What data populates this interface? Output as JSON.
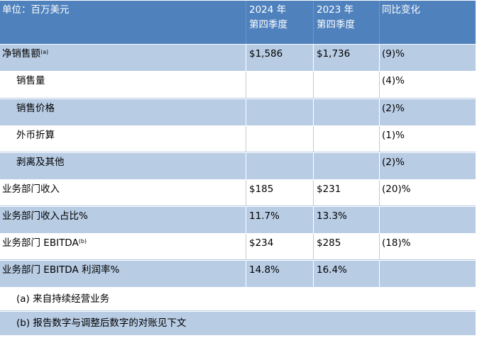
{
  "header": {
    "unit": "单位：百万美元",
    "col_2024_line1": "2024 年",
    "col_2024_line2": "第四季度",
    "col_2023_line1": "2023 年",
    "col_2023_line2": "第四季度",
    "col_change": "同比变化"
  },
  "rows": [
    {
      "label": "净销售额",
      "sup": "(a)",
      "v2024": "$1,586",
      "v2023": "$1,736",
      "change": "(9)%"
    },
    {
      "label": "销售量",
      "sup": "",
      "v2024": "",
      "v2023": "",
      "change": "(4)%"
    },
    {
      "label": "销售价格",
      "sup": "",
      "v2024": "",
      "v2023": "",
      "change": "(2)%"
    },
    {
      "label": "外币折算",
      "sup": "",
      "v2024": "",
      "v2023": "",
      "change": "(1)%"
    },
    {
      "label": "剥离及其他",
      "sup": "",
      "v2024": "",
      "v2023": "",
      "change": "(2)%"
    },
    {
      "label": "业务部门收入",
      "sup": "",
      "v2024": "$185",
      "v2023": "$231",
      "change": "(20)%"
    },
    {
      "label": "业务部门收入占比%",
      "sup": "",
      "v2024": "11.7%",
      "v2023": "13.3%",
      "change": ""
    },
    {
      "label": "业务部门 EBITDA",
      "sup": "(b)",
      "v2024": "$234",
      "v2023": "$285",
      "change": "(18)%"
    },
    {
      "label": "业务部门 EBITDA 利润率%",
      "sup": "",
      "v2024": "14.8%",
      "v2023": "16.4%",
      "change": ""
    }
  ],
  "footnotes": {
    "a": "(a) 来自持续经营业务",
    "b": "(b) 报告数字与调整后数字的对账见下文"
  }
}
